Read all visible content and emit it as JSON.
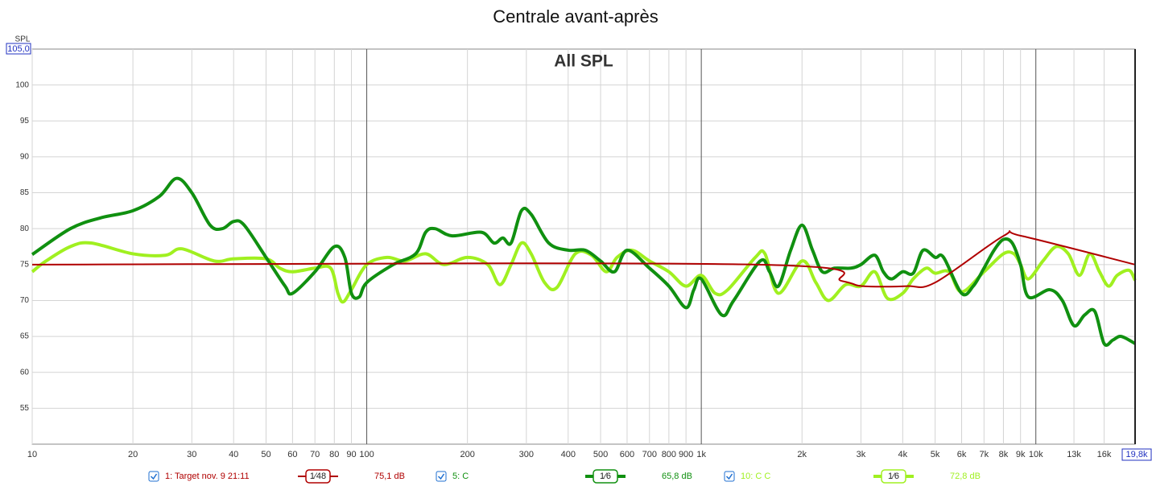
{
  "chart_data": {
    "type": "line",
    "title": "Centrale avant-après",
    "annotation": "All SPL",
    "ylabel": "SPL",
    "y_max_label": "105,0",
    "x_max_label": "19,8k",
    "xscale": "log",
    "grid": true,
    "xlim": [
      10,
      19800
    ],
    "ylim": [
      50,
      105
    ],
    "yticks": [
      55,
      60,
      65,
      70,
      75,
      80,
      85,
      90,
      95,
      100
    ],
    "xticks": [
      10,
      20,
      30,
      40,
      50,
      60,
      70,
      80,
      90,
      100,
      200,
      300,
      400,
      500,
      600,
      700,
      800,
      900,
      {
        "value": 1000,
        "label": "1k"
      },
      {
        "value": 2000,
        "label": "2k"
      },
      {
        "value": 3000,
        "label": "3k"
      },
      {
        "value": 4000,
        "label": "4k"
      },
      {
        "value": 5000,
        "label": "5k"
      },
      {
        "value": 6000,
        "label": "6k"
      },
      {
        "value": 7000,
        "label": "7k"
      },
      {
        "value": 8000,
        "label": "8k"
      },
      {
        "value": 9000,
        "label": "9k"
      },
      {
        "value": 10000,
        "label": "10k"
      },
      {
        "value": 13000,
        "label": "13k"
      },
      {
        "value": 16000,
        "label": "16k"
      }
    ],
    "series": [
      {
        "name": "1: Target nov. 9 21:11",
        "smoothing": "1⁄48",
        "legend_value": "75,1 dB",
        "color": "#b00000",
        "width": 2,
        "x": [
          10,
          1475,
          2640,
          3030,
          4110,
          5000,
          8010,
          9040,
          19800
        ],
        "values": [
          75,
          75,
          72.7,
          72,
          72,
          72.5,
          79,
          79,
          75
        ]
      },
      {
        "name": "5: C",
        "smoothing": "1⁄6",
        "legend_value": "65,8 dB",
        "color": "#109010",
        "width": 4,
        "x": [
          10,
          13,
          16,
          20,
          24,
          27,
          30,
          34,
          37,
          40,
          43,
          50,
          57,
          60,
          70,
          80,
          86,
          90,
          95,
          100,
          120,
          140,
          150,
          160,
          180,
          220,
          240,
          255,
          270,
          290,
          310,
          350,
          400,
          450,
          500,
          550,
          600,
          700,
          800,
          900,
          950,
          1000,
          1150,
          1250,
          1500,
          1600,
          1700,
          1850,
          2000,
          2150,
          2300,
          2500,
          2800,
          3000,
          3300,
          3500,
          3700,
          4000,
          4300,
          4600,
          5000,
          5300,
          6000,
          6500,
          7000,
          7500,
          8000,
          8500,
          9000,
          9500,
          11000,
          12000,
          13000,
          14000,
          15000,
          16000,
          17000,
          18000,
          19800
        ],
        "values": [
          76.4,
          80,
          81.5,
          82.5,
          84.5,
          87,
          85,
          80.5,
          80,
          81,
          80.5,
          76,
          72,
          71,
          74,
          77.5,
          76,
          71,
          70.5,
          72.5,
          75,
          76.5,
          79.5,
          80,
          79,
          79.5,
          78,
          78.7,
          78,
          82.5,
          82,
          78,
          77,
          77,
          75.5,
          74,
          77,
          74.5,
          72,
          69,
          71.5,
          73,
          68,
          70,
          75.5,
          74,
          72,
          77,
          80.5,
          77,
          74,
          74.5,
          74.5,
          75,
          76.3,
          74,
          73,
          74,
          73.8,
          77,
          76,
          76,
          71,
          72,
          74.5,
          77,
          78.5,
          78,
          75,
          70.5,
          71.5,
          70,
          66.5,
          68,
          68.5,
          64,
          64.5,
          65,
          64
        ]
      },
      {
        "name": "10: C C",
        "smoothing": "1⁄6",
        "legend_value": "72,8 dB",
        "color": "#a0f020",
        "width": 4,
        "x": [
          10,
          11,
          13,
          15,
          20,
          25,
          28,
          35,
          40,
          50,
          55,
          60,
          70,
          78,
          82,
          85,
          90,
          100,
          115,
          130,
          150,
          170,
          200,
          230,
          250,
          270,
          290,
          310,
          340,
          370,
          420,
          470,
          520,
          560,
          620,
          700,
          800,
          900,
          1000,
          1100,
          1200,
          1450,
          1550,
          1700,
          2000,
          2200,
          2400,
          2700,
          3000,
          3300,
          3600,
          4000,
          4300,
          4700,
          5000,
          5500,
          6000,
          7000,
          8000,
          8600,
          9000,
          9500,
          10500,
          11500,
          12500,
          13500,
          14500,
          15500,
          16500,
          17500,
          19000,
          19800
        ],
        "values": [
          74,
          75.5,
          77.5,
          78,
          76.5,
          76.3,
          77.2,
          75.5,
          75.8,
          75.8,
          74.5,
          74,
          74.5,
          74.5,
          71,
          69.8,
          71.5,
          75,
          76,
          75.5,
          76.5,
          75,
          76,
          75,
          72.2,
          75,
          78,
          76.5,
          72.5,
          71.8,
          76.5,
          76.3,
          74,
          76,
          77,
          75.5,
          74,
          72,
          73.5,
          71,
          71.5,
          76,
          76.5,
          71,
          75.5,
          72.5,
          70,
          72.2,
          72,
          74,
          70.3,
          71,
          73,
          74.5,
          73.8,
          74,
          71.2,
          74,
          76.5,
          76.5,
          75,
          73,
          75.5,
          77.5,
          76.5,
          73.5,
          76.5,
          74,
          72,
          73.5,
          74.2,
          72.8
        ]
      }
    ]
  }
}
